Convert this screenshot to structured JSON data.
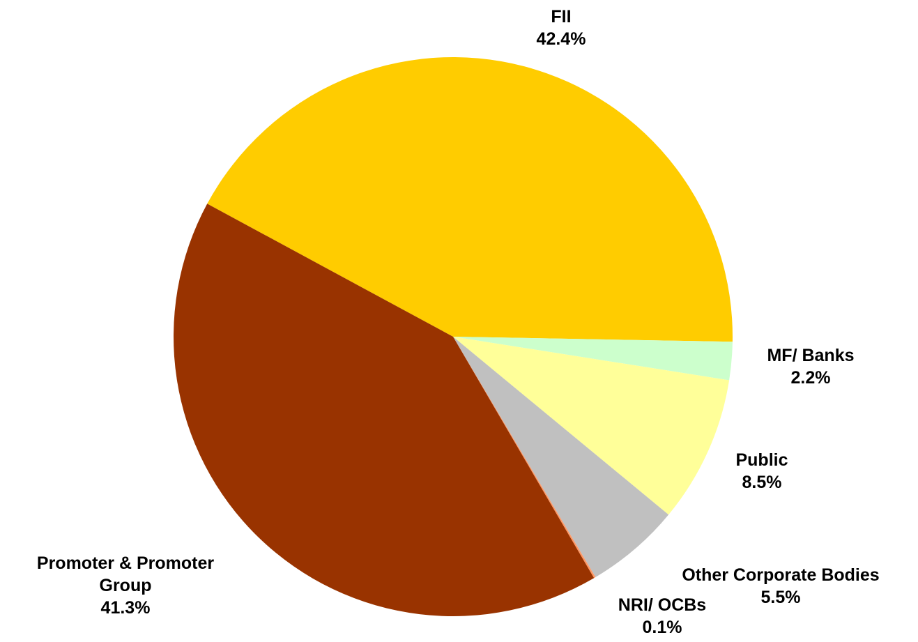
{
  "chart_data": {
    "type": "pie",
    "categories": [
      "FII",
      "MF/ Banks",
      "Public",
      "Other Corporate Bodies",
      "NRI/ OCBs",
      "Promoter & Promoter Group"
    ],
    "values": [
      42.4,
      2.2,
      8.5,
      5.5,
      0.1,
      41.3
    ],
    "value_labels": [
      "42.4%",
      "2.2%",
      "8.5%",
      "5.5%",
      "0.1%",
      "41.3%"
    ],
    "colors": [
      "#ffcc00",
      "#ccffcc",
      "#ffff99",
      "#c0c0c0",
      "#ff9966",
      "#993300"
    ]
  }
}
